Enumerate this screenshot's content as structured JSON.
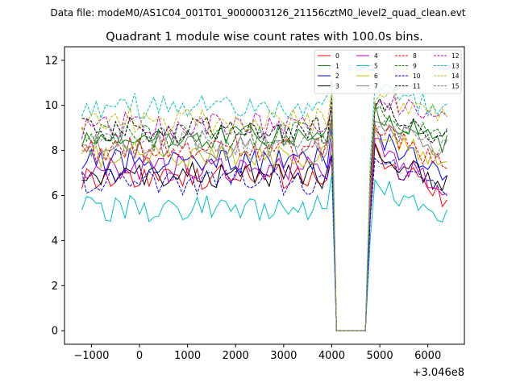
{
  "chart_data": {
    "type": "line",
    "suptitle": "Data file: modeM0/AS1C04_001T01_9000003126_21156cztM0_level2_quad_clean.evt",
    "title": "Quadrant 1 module wise count rates with 100.0s bins.",
    "xlabel": "",
    "ylabel": "",
    "x_offset_label": "+3.046e8",
    "xlim": [
      -1560,
      6760
    ],
    "ylim": [
      -0.6,
      12.6
    ],
    "xticks": [
      -1000,
      0,
      1000,
      2000,
      3000,
      4000,
      5000,
      6000
    ],
    "xtick_labels": [
      "−1000",
      "0",
      "1000",
      "2000",
      "3000",
      "4000",
      "5000",
      "6000"
    ],
    "yticks": [
      0,
      2,
      4,
      6,
      8,
      10,
      12
    ],
    "ytick_labels": [
      "0",
      "2",
      "4",
      "6",
      "8",
      "10",
      "12"
    ],
    "grid": false,
    "legend_position": "top-right",
    "gap": {
      "start": 4100,
      "end": 4800
    },
    "x": [
      -1200,
      -1100,
      -1000,
      -900,
      -800,
      -700,
      -600,
      -500,
      -400,
      -300,
      -200,
      -100,
      0,
      100,
      200,
      300,
      400,
      500,
      600,
      700,
      800,
      900,
      1000,
      1100,
      1200,
      1300,
      1400,
      1500,
      1600,
      1700,
      1800,
      1900,
      2000,
      2100,
      2200,
      2300,
      2400,
      2500,
      2600,
      2700,
      2800,
      2900,
      3000,
      3100,
      3200,
      3300,
      3400,
      3500,
      3600,
      3700,
      3800,
      3900,
      4000,
      4100,
      4200,
      4300,
      4400,
      4500,
      4600,
      4700,
      4800,
      4900,
      5000,
      5100,
      5200,
      5300,
      5400,
      5500,
      5600,
      5700,
      5800,
      5900,
      6000,
      6100,
      6200,
      6300,
      6400
    ],
    "series": [
      {
        "name": "0",
        "color": "#ff0000",
        "dash": "solid",
        "level": 6.8,
        "end": 5.8
      },
      {
        "name": "1",
        "color": "#008000",
        "dash": "solid",
        "level": 8.6,
        "end": 8.2
      },
      {
        "name": "2",
        "color": "#0000ff",
        "dash": "solid",
        "level": 7.5,
        "end": 6.9
      },
      {
        "name": "3",
        "color": "#000000",
        "dash": "solid",
        "level": 6.9,
        "end": 6.4
      },
      {
        "name": "4",
        "color": "#bf00bf",
        "dash": "solid",
        "level": 7.2,
        "end": 6.1
      },
      {
        "name": "5",
        "color": "#00bfbf",
        "dash": "solid",
        "level": 5.4,
        "end": 4.9
      },
      {
        "name": "6",
        "color": "#bfbf00",
        "dash": "solid",
        "level": 7.8,
        "end": 7.5
      },
      {
        "name": "7",
        "color": "#808080",
        "dash": "solid",
        "level": 8.1,
        "end": 8.0
      },
      {
        "name": "8",
        "color": "#ff0000",
        "dash": "dashed",
        "level": 8.0,
        "end": 7.2
      },
      {
        "name": "9",
        "color": "#008000",
        "dash": "dashed",
        "level": 8.7,
        "end": 8.5
      },
      {
        "name": "10",
        "color": "#0000ff",
        "dash": "dashed",
        "level": 6.6,
        "end": 6.0
      },
      {
        "name": "11",
        "color": "#000000",
        "dash": "dashed",
        "level": 8.9,
        "end": 8.4
      },
      {
        "name": "12",
        "color": "#bf00bf",
        "dash": "dashed",
        "level": 9.1,
        "end": 9.5
      },
      {
        "name": "13",
        "color": "#00bfbf",
        "dash": "dashed",
        "level": 10.0,
        "end": 9.6
      },
      {
        "name": "14",
        "color": "#bfbf00",
        "dash": "dashed",
        "level": 9.3,
        "end": 9.5
      },
      {
        "name": "15",
        "color": "#808080",
        "dash": "dashed",
        "level": 8.3,
        "end": 8.0
      }
    ]
  }
}
